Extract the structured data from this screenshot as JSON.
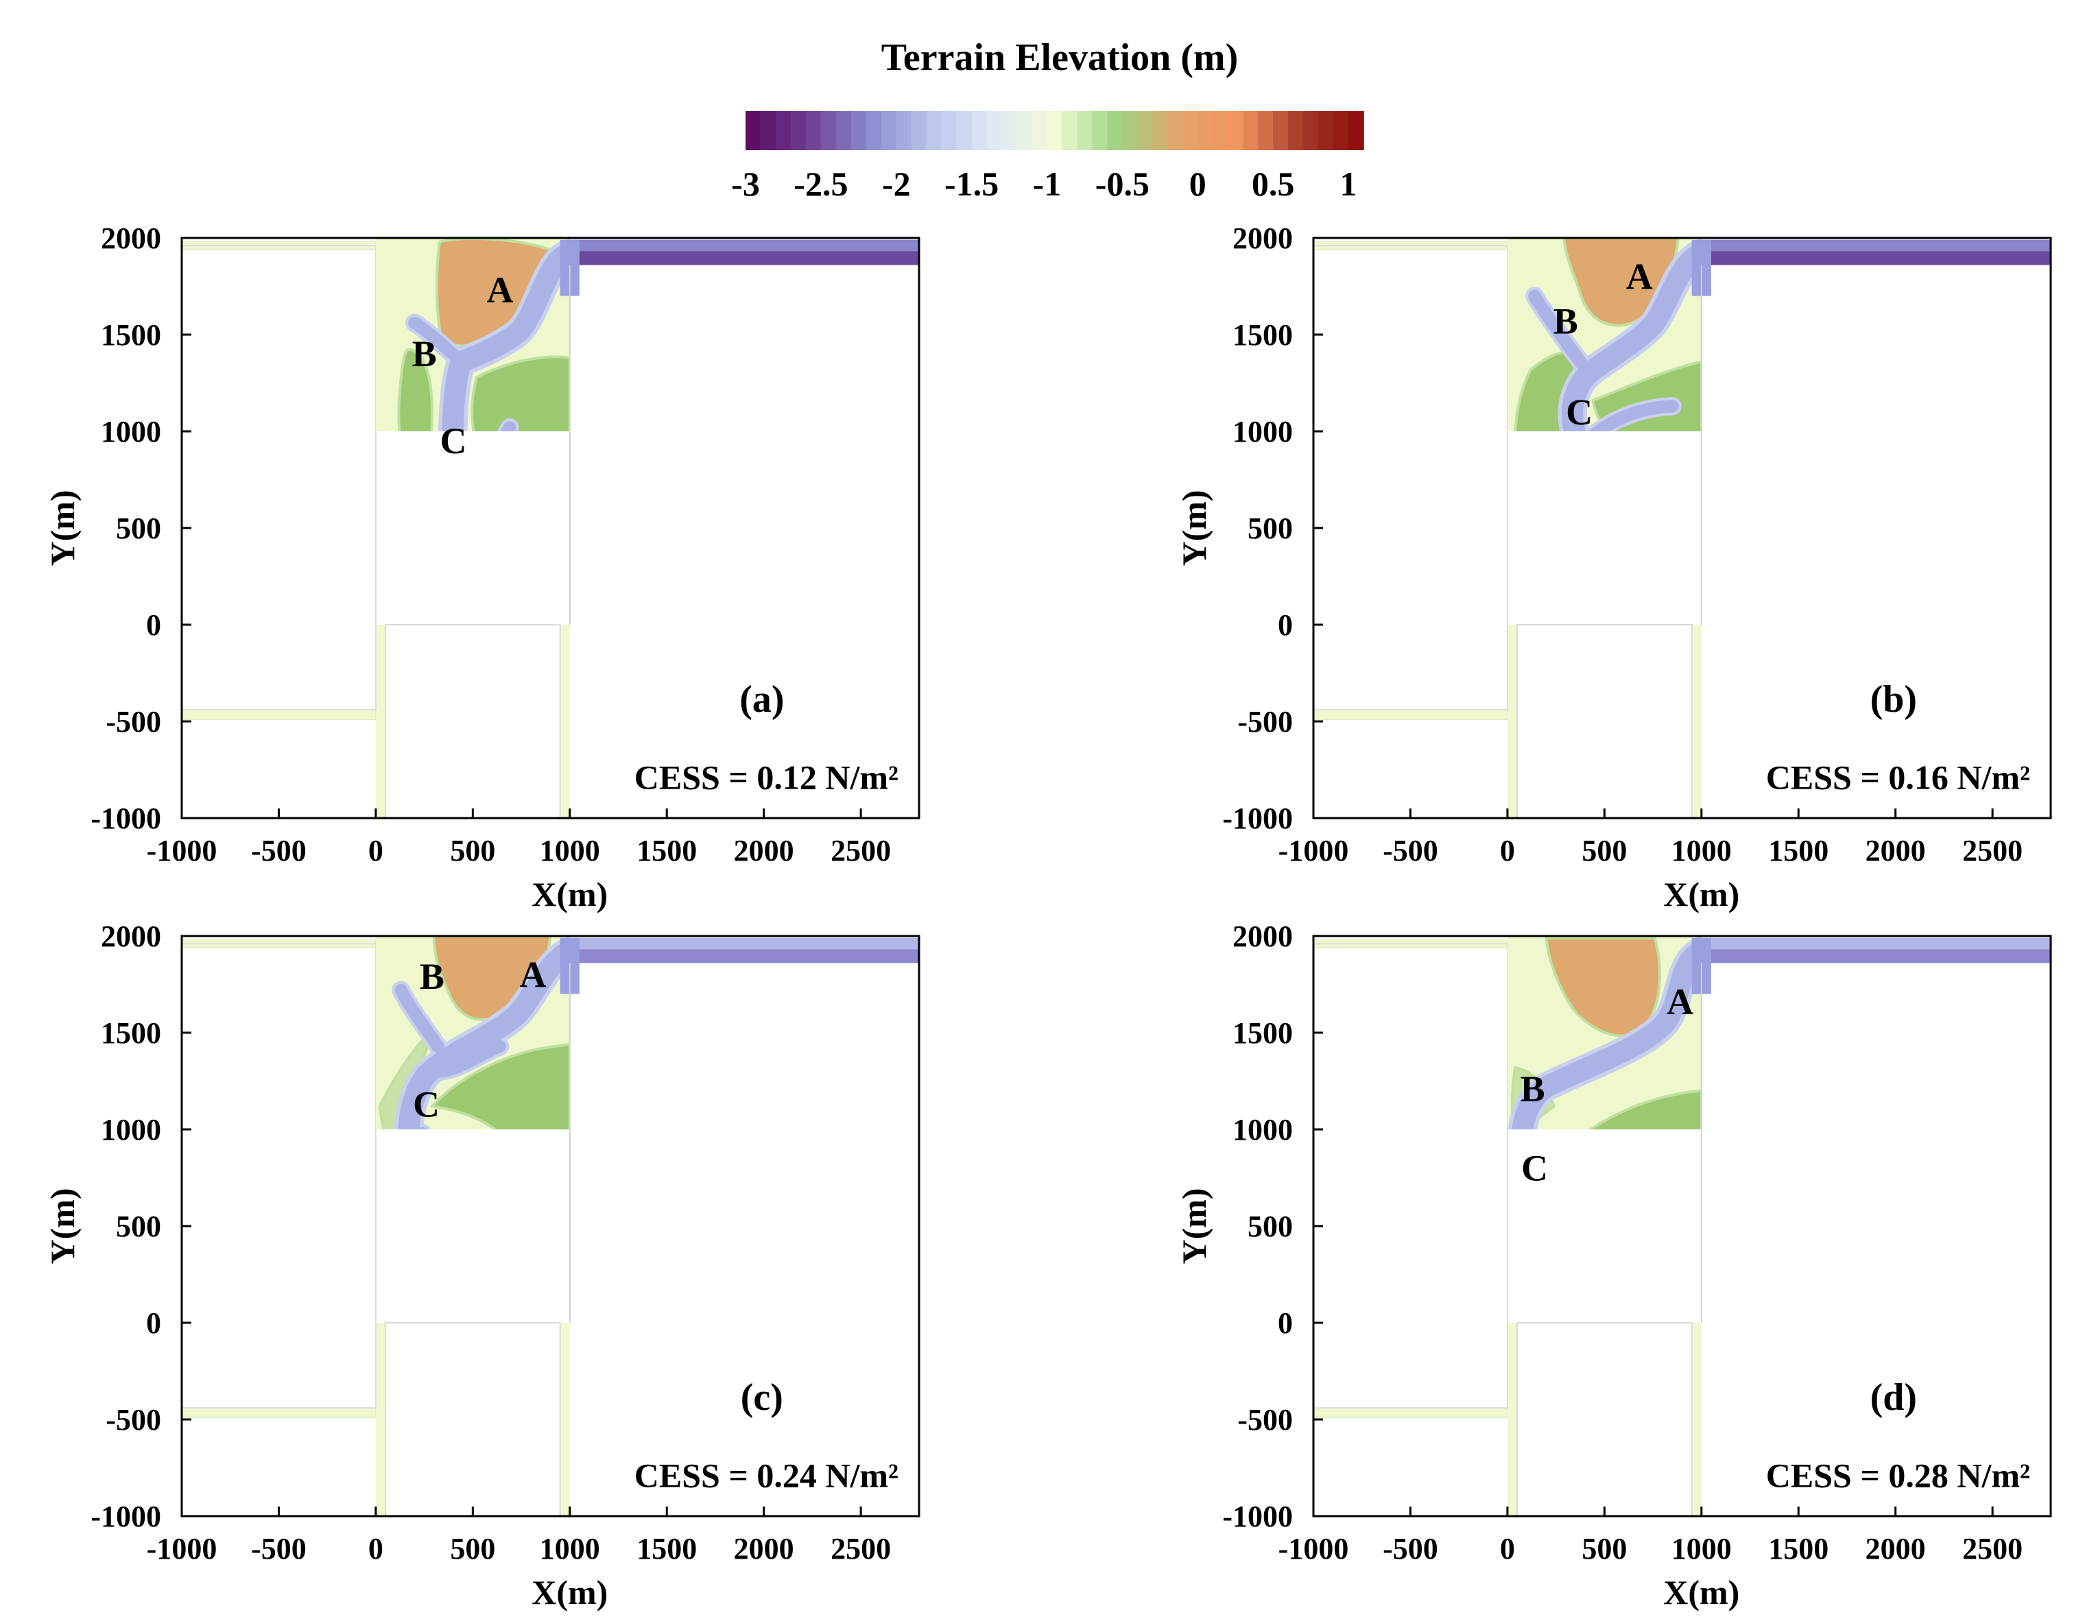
{
  "colorbar": {
    "title": "Terrain Elevation (m)",
    "ticks": [
      "-3",
      "-2.5",
      "-2",
      "-1.5",
      "-1",
      "-0.5",
      "0",
      "0.5",
      "1"
    ],
    "range": [
      -3,
      1.1
    ]
  },
  "colors": {
    "colormap": [
      "#5a0a5e",
      "#6e3c94",
      "#8a8bd0",
      "#b9c6ea",
      "#dfe8f4",
      "#f1fbd6",
      "#9fd482",
      "#e3a56c",
      "#f3945e",
      "#a23a28",
      "#8c0a0a"
    ],
    "land_high": "#dea86e",
    "land_mid": "#9cc870",
    "land_low": "#c9e2a8",
    "flat": "#eef8cc",
    "channel": "#aab2e6",
    "channel_deep": "#6a4a9e",
    "panel_bg": "#ffffff",
    "rim": "#f0f8d0"
  },
  "chart_data": [
    {
      "type": "heatmap",
      "panel": "(a)",
      "annotation": "CESS = 0.12 N/m²",
      "xlabel": "X(m)",
      "ylabel": "Y(m)",
      "xlim": [
        -1000,
        2800
      ],
      "ylim": [
        -1000,
        2000
      ],
      "xticks": [
        "-1000",
        "-500",
        "0",
        "500",
        "1000",
        "1500",
        "2000",
        "2500"
      ],
      "yticks": [
        "2000",
        "1500",
        "1000",
        "500",
        "0",
        "-500",
        "-1000"
      ],
      "channel_labels": [
        {
          "text": "A",
          "x": 640,
          "y": 1730
        },
        {
          "text": "B",
          "x": 250,
          "y": 1400
        },
        {
          "text": "C",
          "x": 400,
          "y": 950
        }
      ]
    },
    {
      "type": "heatmap",
      "panel": "(b)",
      "annotation": "CESS = 0.16 N/m²",
      "xlabel": "X(m)",
      "ylabel": "Y(m)",
      "xlim": [
        -1000,
        2800
      ],
      "ylim": [
        -1000,
        2000
      ],
      "xticks": [
        "-1000",
        "-500",
        "0",
        "500",
        "1000",
        "1500",
        "2000",
        "2500"
      ],
      "yticks": [
        "2000",
        "1500",
        "1000",
        "500",
        "0",
        "-500",
        "-1000"
      ],
      "channel_labels": [
        {
          "text": "A",
          "x": 680,
          "y": 1800
        },
        {
          "text": "B",
          "x": 300,
          "y": 1570
        },
        {
          "text": "C",
          "x": 370,
          "y": 1100
        }
      ]
    },
    {
      "type": "heatmap",
      "panel": "(c)",
      "annotation": "CESS = 0.24 N/m²",
      "xlabel": "X(m)",
      "ylabel": "Y(m)",
      "xlim": [
        -1000,
        2800
      ],
      "ylim": [
        -1000,
        2000
      ],
      "xticks": [
        "-1000",
        "-500",
        "0",
        "500",
        "1000",
        "1500",
        "2000",
        "2500"
      ],
      "yticks": [
        "2000",
        "1500",
        "1000",
        "500",
        "0",
        "-500",
        "-1000"
      ],
      "channel_labels": [
        {
          "text": "A",
          "x": 810,
          "y": 1800
        },
        {
          "text": "B",
          "x": 290,
          "y": 1790
        },
        {
          "text": "C",
          "x": 260,
          "y": 1130
        }
      ]
    },
    {
      "type": "heatmap",
      "panel": "(d)",
      "annotation": "CESS = 0.28 N/m²",
      "xlabel": "X(m)",
      "ylabel": "Y(m)",
      "xlim": [
        -1000,
        2800
      ],
      "ylim": [
        -1000,
        2000
      ],
      "xticks": [
        "-1000",
        "-500",
        "0",
        "500",
        "1000",
        "1500",
        "2000",
        "2500"
      ],
      "yticks": [
        "2000",
        "1500",
        "1000",
        "500",
        "0",
        "-500",
        "-1000"
      ],
      "channel_labels": [
        {
          "text": "A",
          "x": 890,
          "y": 1660
        },
        {
          "text": "B",
          "x": 130,
          "y": 1210
        },
        {
          "text": "C",
          "x": 140,
          "y": 800
        }
      ]
    }
  ]
}
